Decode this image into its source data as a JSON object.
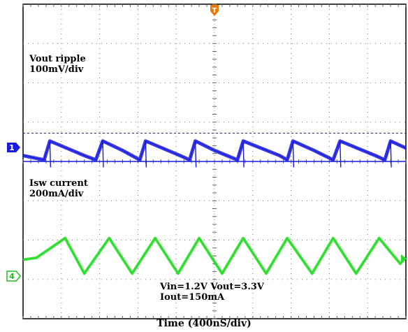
{
  "chart_data": {
    "type": "line",
    "grid": true,
    "x_divisions": 10,
    "y_divisions": 8,
    "xlabel": "Time (400nS/div)",
    "trigger_marker": "T",
    "channel_markers": [
      "1",
      "4"
    ],
    "annotations": {
      "ch1_name": "Vout ripple",
      "ch1_scale": "100mV/div",
      "ch4_name": "Isw current",
      "ch4_scale": "200mA/div",
      "conditions_line1": "Vin=1.2V  Vout=3.3V",
      "conditions_line2": "Iout=150mA"
    },
    "series": [
      {
        "channel": "1",
        "color": "#1a1ae0",
        "ref_level_div": 0,
        "x_div": [
          0,
          0.55,
          0.7,
          1.6,
          1.9,
          2.08,
          2.6,
          3.05,
          3.2,
          4.1,
          4.35,
          4.5,
          5.0,
          5.6,
          5.75,
          6.7,
          6.9,
          7.05,
          7.6,
          8.1,
          8.28,
          9.2,
          9.45,
          9.6,
          10
        ],
        "y_div": [
          0.15,
          0.04,
          0.52,
          0.15,
          0.04,
          0.52,
          0.28,
          0.04,
          0.52,
          0.15,
          0.04,
          0.52,
          0.28,
          0.04,
          0.52,
          0.15,
          0.04,
          0.52,
          0.28,
          0.04,
          0.52,
          0.15,
          0.04,
          0.52,
          0.34
        ]
      },
      {
        "channel": "4",
        "color": "#22dd22",
        "ref_level_div": -5,
        "x_div": [
          0,
          0.35,
          1.1,
          1.6,
          2.25,
          2.85,
          3.45,
          4.05,
          4.6,
          5.2,
          5.75,
          6.35,
          6.9,
          7.55,
          8.1,
          8.7,
          9.3,
          9.85,
          10
        ],
        "y_div": [
          2.5,
          2.55,
          3.05,
          2.15,
          3.05,
          2.15,
          3.05,
          2.15,
          3.05,
          2.15,
          3.05,
          2.15,
          3.05,
          2.15,
          3.05,
          2.15,
          3.05,
          2.4,
          2.55
        ]
      }
    ]
  }
}
